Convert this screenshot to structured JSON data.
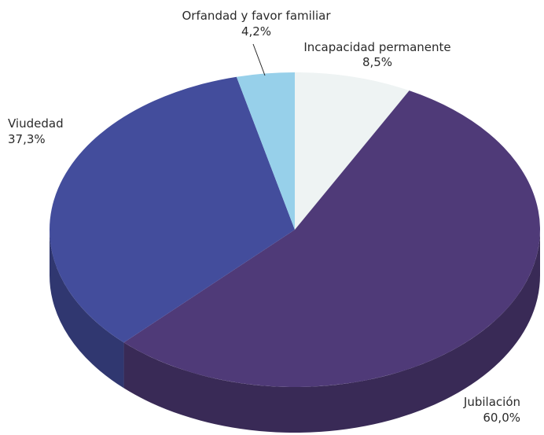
{
  "chart_data": {
    "type": "pie",
    "style": "3d",
    "legend": "none",
    "slices": [
      {
        "name": "Incapacidad permanente",
        "label": "8,5%",
        "value": 8.5,
        "color": "#eef3f3"
      },
      {
        "name": "Jubilación",
        "label": "60,0%",
        "value": 60.0,
        "color": "#4f3a78"
      },
      {
        "name": "Viudedad",
        "label": "37,3%",
        "value": 37.3,
        "color": "#434d9c"
      },
      {
        "name": "Orfandad y favor familiar",
        "label": "4,2%",
        "value": 4.2,
        "color": "#97d0ea"
      }
    ]
  }
}
